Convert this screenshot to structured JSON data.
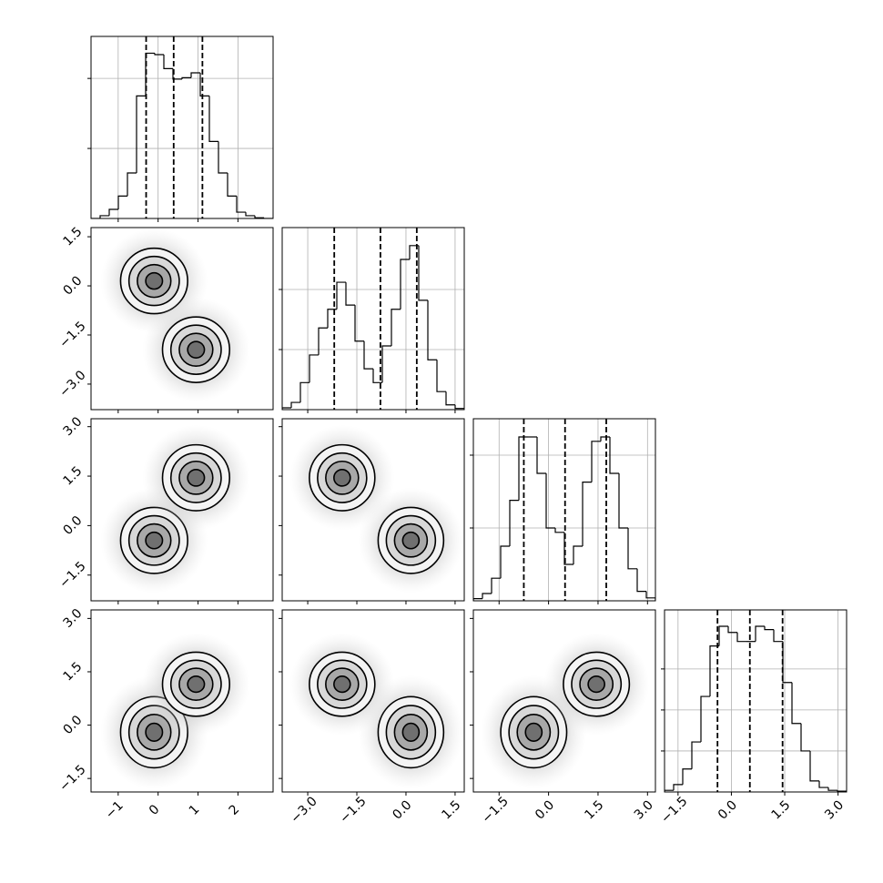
{
  "chart_data": {
    "type": "corner",
    "grid": true,
    "variables": [
      {
        "xlim": [
          -1.68,
          2.88
        ],
        "xticks": [
          {
            "value": -1,
            "label": "−1"
          },
          0,
          1,
          2
        ],
        "quantiles": [
          -0.3,
          0.39,
          1.11
        ],
        "bins": [
          -1.68,
          -1.452,
          -1.224,
          -0.996,
          -0.768,
          -0.54,
          -0.312,
          -0.084,
          0.144,
          0.372,
          0.6,
          0.828,
          1.056,
          1.284,
          1.512,
          1.74,
          1.968,
          2.196,
          2.424,
          2.652,
          2.88
        ],
        "values": [
          0,
          0.04,
          0.13,
          0.32,
          0.65,
          1.75,
          2.36,
          2.34,
          2.14,
          1.99,
          2.01,
          2.08,
          1.75,
          1.1,
          0.65,
          0.32,
          0.09,
          0.04,
          0.01,
          0
        ],
        "ylim": [
          0,
          2.6
        ],
        "yticks": [
          1,
          2
        ]
      },
      {
        "xlim": [
          -3.78,
          1.78
        ],
        "xticks": [
          {
            "value": -3,
            "label": "−3.0"
          },
          {
            "value": -1.5,
            "label": "−1.5"
          },
          {
            "value": 0,
            "label": "0.0"
          },
          1.5
        ],
        "quantiles": [
          -2.19,
          -0.78,
          0.33
        ],
        "bins": [
          -3.78,
          -3.502,
          -3.224,
          -2.946,
          -2.668,
          -2.39,
          -2.112,
          -1.834,
          -1.556,
          -1.278,
          -1.0,
          -0.722,
          -0.444,
          -0.166,
          0.112,
          0.39,
          0.668,
          0.946,
          1.224,
          1.502,
          1.78
        ],
        "values": [
          0.03,
          0.12,
          0.45,
          0.91,
          1.36,
          1.67,
          2.12,
          1.74,
          1.14,
          0.68,
          0.45,
          1.06,
          1.67,
          2.5,
          2.73,
          1.82,
          0.83,
          0.3,
          0.08,
          0.02
        ],
        "ylim": [
          0,
          3.03
        ],
        "yticks": [
          1,
          2
        ]
      },
      {
        "xlim": [
          -2.28,
          3.24
        ],
        "xticks": [
          {
            "value": -1.5,
            "label": "−1.5"
          },
          {
            "value": 0,
            "label": "0.0"
          },
          1.5,
          {
            "value": 3,
            "label": "3.0"
          }
        ],
        "quantiles": [
          -0.75,
          0.5,
          1.75
        ],
        "bins": [
          -2.28,
          -2.004,
          -1.728,
          -1.452,
          -1.176,
          -0.9,
          -0.624,
          -0.348,
          -0.072,
          0.204,
          0.48,
          0.756,
          1.032,
          1.308,
          1.584,
          1.86,
          2.136,
          2.412,
          2.688,
          2.964,
          3.24
        ],
        "values": [
          0.03,
          0.1,
          0.31,
          0.75,
          1.38,
          2.25,
          2.25,
          1.75,
          1.0,
          0.94,
          0.5,
          0.75,
          1.63,
          2.19,
          2.25,
          1.75,
          1.0,
          0.44,
          0.13,
          0.04
        ],
        "ylim": [
          0,
          2.5
        ],
        "yticks": [
          1,
          2
        ]
      },
      {
        "xlim": [
          -1.88,
          3.24
        ],
        "xticks": [
          {
            "value": -1.5,
            "label": "−1.5"
          },
          {
            "value": 0,
            "label": "0.0"
          },
          1.5,
          {
            "value": 3,
            "label": "3.0"
          }
        ],
        "quantiles": [
          -0.39,
          0.52,
          1.44
        ],
        "bins": [
          -1.88,
          -1.624,
          -1.368,
          -1.112,
          -0.856,
          -0.6,
          -0.344,
          -0.088,
          0.168,
          0.424,
          0.68,
          0.936,
          1.192,
          1.448,
          1.704,
          1.96,
          2.216,
          2.472,
          2.728,
          2.984,
          3.24
        ],
        "values": [
          0.04,
          0.18,
          0.56,
          1.22,
          2.33,
          3.56,
          4.04,
          3.89,
          3.67,
          3.67,
          4.04,
          3.96,
          3.67,
          2.67,
          1.67,
          1.0,
          0.27,
          0.11,
          0.04,
          0.02
        ],
        "ylim": [
          0,
          4.44
        ],
        "yticks": [
          1,
          2,
          3
        ]
      }
    ],
    "clusters": [
      {
        "center": [
          -0.1,
          0.15,
          -0.45,
          -0.2
        ],
        "sigma": [
          0.42,
          0.5,
          0.5,
          0.5
        ]
      },
      {
        "center": [
          0.95,
          -1.95,
          1.45,
          1.15
        ],
        "sigma": [
          0.42,
          0.5,
          0.5,
          0.45
        ]
      }
    ],
    "levels": [
      0.5,
      1,
      1.5,
      2
    ]
  }
}
